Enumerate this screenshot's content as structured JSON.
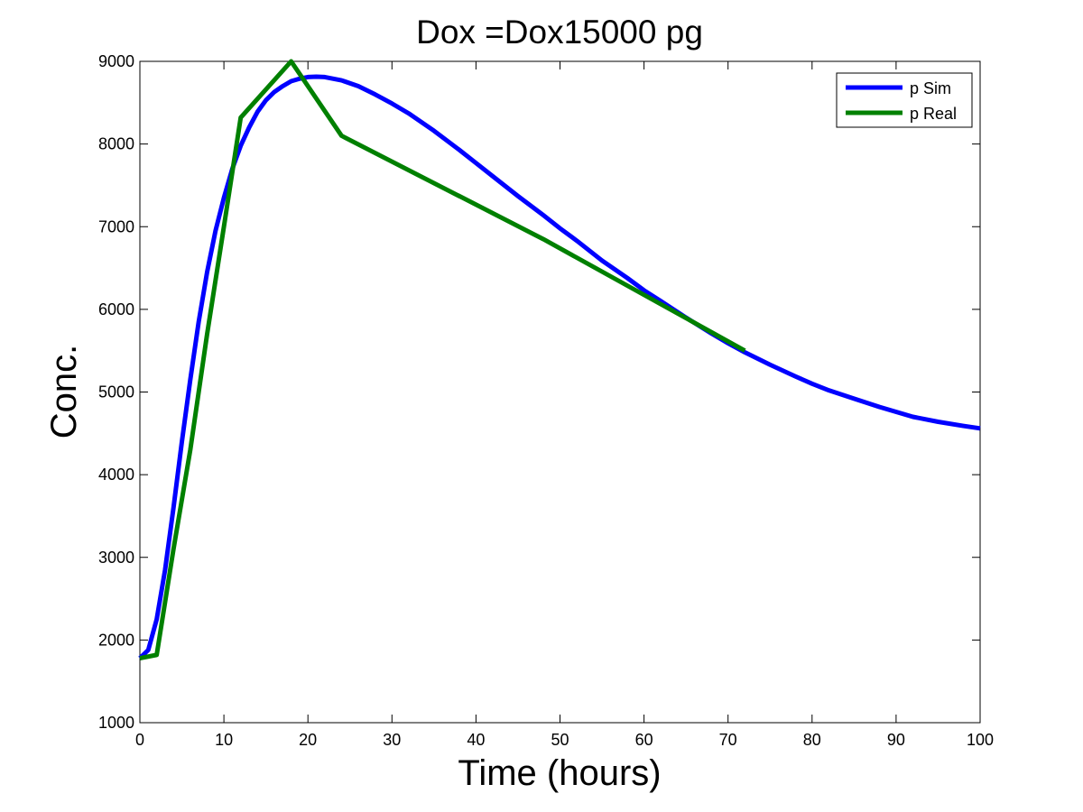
{
  "chart_data": {
    "type": "line",
    "title": "Dox =Dox15000 pg",
    "xlabel": "Time (hours)",
    "ylabel": "Conc.",
    "xlim": [
      0,
      100
    ],
    "ylim": [
      1000,
      9000
    ],
    "x_ticks": [
      0,
      10,
      20,
      30,
      40,
      50,
      60,
      70,
      80,
      90,
      100
    ],
    "y_ticks": [
      1000,
      2000,
      3000,
      4000,
      5000,
      6000,
      7000,
      8000,
      9000
    ],
    "grid": false,
    "legend_position": "top-right",
    "series": [
      {
        "name": "p Sim",
        "color": "#0000ff",
        "x": [
          0,
          1,
          2,
          3,
          4,
          5,
          6,
          7,
          8,
          9,
          10,
          11,
          12,
          13,
          14,
          15,
          16,
          17,
          18,
          19,
          20,
          21,
          22,
          24,
          26,
          28,
          30,
          32,
          35,
          38,
          40,
          42,
          45,
          48,
          50,
          52,
          55,
          58,
          60,
          62,
          65,
          68,
          70,
          72,
          75,
          78,
          80,
          82,
          85,
          88,
          90,
          92,
          95,
          98,
          100
        ],
        "y": [
          1780,
          1880,
          2250,
          2850,
          3600,
          4400,
          5150,
          5850,
          6450,
          6950,
          7350,
          7700,
          7980,
          8200,
          8390,
          8530,
          8630,
          8700,
          8760,
          8790,
          8810,
          8815,
          8810,
          8770,
          8700,
          8600,
          8490,
          8370,
          8160,
          7930,
          7770,
          7610,
          7370,
          7140,
          6980,
          6830,
          6590,
          6380,
          6230,
          6100,
          5900,
          5710,
          5590,
          5480,
          5330,
          5190,
          5100,
          5020,
          4920,
          4820,
          4760,
          4700,
          4640,
          4590,
          4560
        ]
      },
      {
        "name": "p Real",
        "color": "#008000",
        "x": [
          0,
          2,
          4,
          6,
          8,
          10,
          12,
          18,
          24,
          48,
          72
        ],
        "y": [
          1780,
          1820,
          3100,
          4300,
          5700,
          7000,
          8320,
          9000,
          8100,
          6850,
          5500
        ]
      }
    ]
  }
}
